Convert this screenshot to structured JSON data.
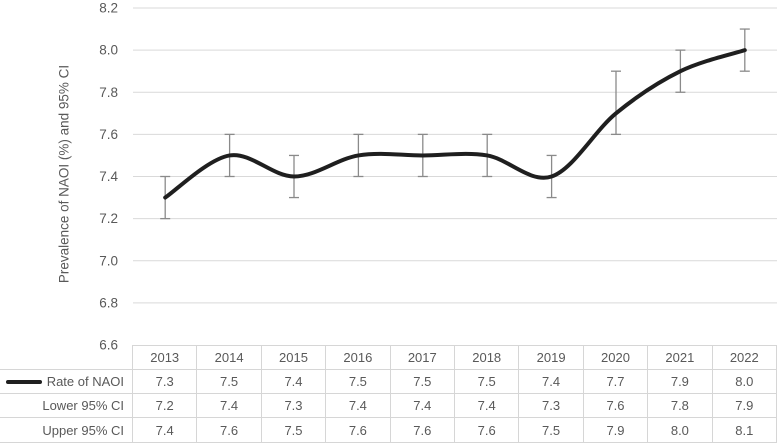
{
  "chart": {
    "colors": {
      "line": "#1f1f1f",
      "error_bar": "#8a8a8a",
      "gridline": "#d9d9d9",
      "text": "#595959",
      "table_border": "#d6d6d6"
    }
  },
  "chart_data": {
    "type": "line",
    "title": "",
    "categories": [
      "2013",
      "2014",
      "2015",
      "2016",
      "2017",
      "2018",
      "2019",
      "2020",
      "2021",
      "2022"
    ],
    "series": [
      {
        "name": "Rate of NAOI",
        "values": [
          7.3,
          7.5,
          7.4,
          7.5,
          7.5,
          7.5,
          7.4,
          7.7,
          7.9,
          8.0
        ]
      },
      {
        "name": "Lower 95% CI",
        "values": [
          7.2,
          7.4,
          7.3,
          7.4,
          7.4,
          7.4,
          7.3,
          7.6,
          7.8,
          7.9
        ]
      },
      {
        "name": "Upper 95% CI",
        "values": [
          7.4,
          7.6,
          7.5,
          7.6,
          7.6,
          7.6,
          7.5,
          7.9,
          8.0,
          8.1
        ]
      }
    ],
    "xlabel": "",
    "ylabel": "Prevalence of NAOI (%) and 95% CI",
    "ylim": [
      6.6,
      8.2
    ],
    "y_ticks": [
      6.6,
      6.8,
      7.0,
      7.2,
      7.4,
      7.6,
      7.8,
      8.0,
      8.2
    ],
    "grid": true,
    "error_bars": {
      "lower_series": "Lower 95% CI",
      "upper_series": "Upper 95% CI"
    },
    "legend_position": "table-row-header",
    "smooth_line": true
  }
}
